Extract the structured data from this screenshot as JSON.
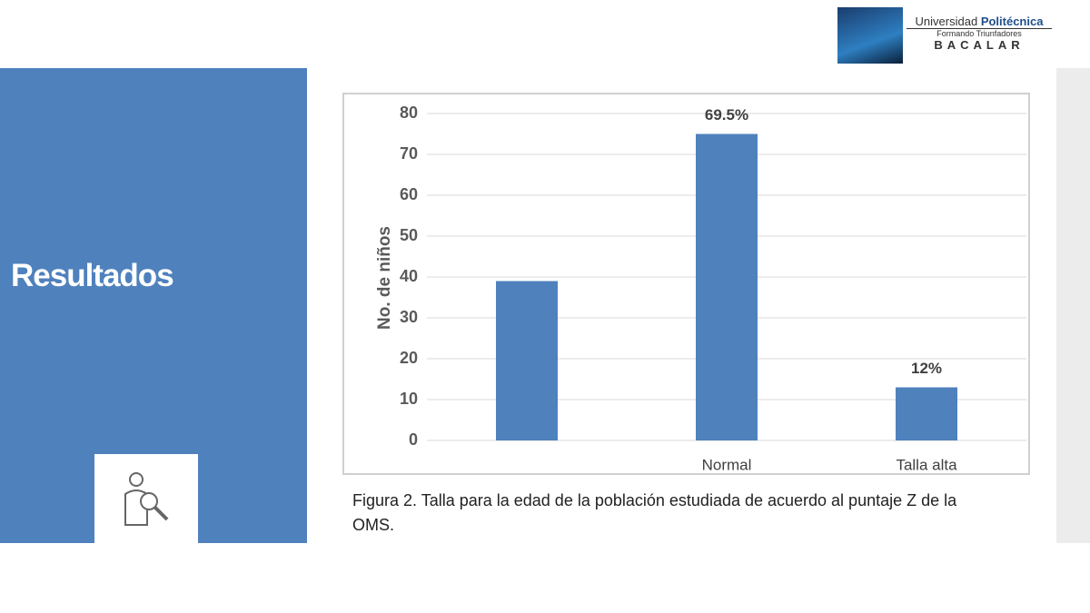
{
  "header": {
    "logo": {
      "name": "Universidad",
      "name_bold": "Politécnica",
      "tagline": "Formando Triunfadores",
      "campus": "BACALAR"
    }
  },
  "slide_title": "Resultados",
  "chart_data": {
    "type": "bar",
    "categories": [
      null,
      "Normal",
      "Talla alta"
    ],
    "values": [
      39,
      75,
      13
    ],
    "annotations": [
      "69.5%",
      "12%"
    ],
    "ylabel": "No. de niños",
    "ylim": [
      0,
      80
    ],
    "yticks": [
      0,
      10,
      20,
      30,
      40,
      50,
      60,
      70,
      80
    ],
    "grid": true,
    "color": "#4f81bd"
  },
  "caption": "Figura 2. Talla para la edad de la población estudiada de acuerdo al puntaje Z de la OMS."
}
